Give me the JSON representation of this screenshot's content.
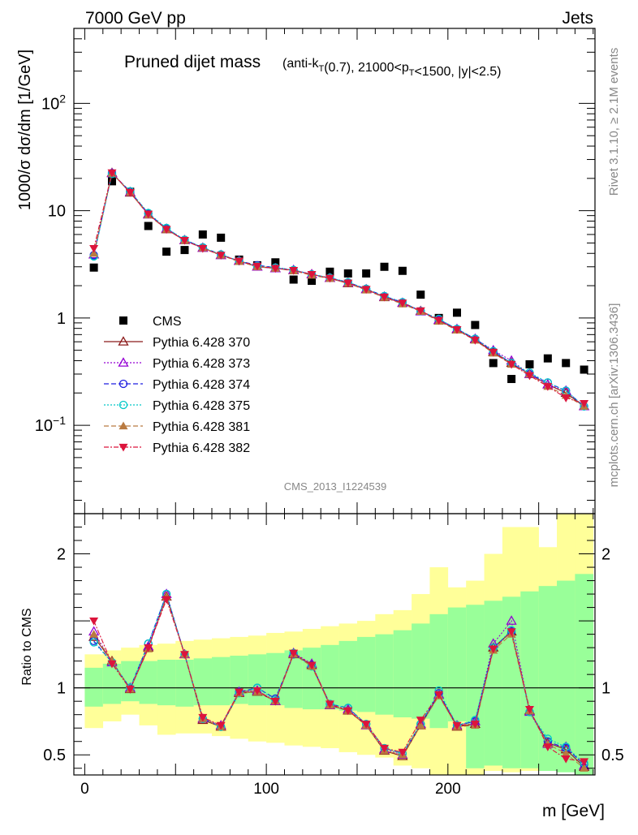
{
  "header": {
    "energy": "7000 GeV pp",
    "category": "Jets",
    "rivet": "Rivet 3.1.10, ≥ 2.1M events",
    "source": "mcplots.cern.ch [arXiv:1306.3436]",
    "analysis": "CMS_2013_I1224539"
  },
  "chart_data": [
    {
      "type": "scatter",
      "panel": "main",
      "title": "Pruned dijet mass",
      "subtitle": "(anti-k_T(0.7), 21000<p_T<1500, |y|<2.5)",
      "ylabel": "1000/σ dσ/dm [1/GeV]",
      "xlabel": "m [GeV]",
      "yscale": "log",
      "xlim": [
        -6,
        281
      ],
      "ylim": [
        0.015,
        500
      ],
      "x_ticks": [
        "0",
        "100",
        "200"
      ],
      "y_ticks": [
        "10^-1",
        "1",
        "10",
        "10^2"
      ],
      "legend_position": "middle-left",
      "x": [
        5,
        15,
        25,
        35,
        45,
        55,
        65,
        75,
        85,
        95,
        105,
        115,
        125,
        135,
        145,
        155,
        165,
        175,
        185,
        195,
        205,
        215,
        225,
        235,
        245,
        255,
        265,
        275
      ],
      "series": [
        {
          "name": "CMS",
          "color": "#000000",
          "marker": "square",
          "values": [
            2.95,
            18.8,
            15.0,
            7.2,
            4.15,
            4.3,
            6.0,
            5.6,
            3.5,
            3.1,
            3.3,
            2.28,
            2.22,
            2.7,
            2.6,
            2.6,
            3.0,
            2.75,
            1.65,
            1.0,
            1.12,
            0.86,
            0.38,
            0.27,
            0.37,
            0.42,
            0.38,
            0.33
          ]
        },
        {
          "name": "Pythia 6.428 370",
          "color": "#8b1a1a",
          "marker": "triangle-open",
          "dash": "",
          "values": [
            3.9,
            22.5,
            14.7,
            9.3,
            6.7,
            5.3,
            4.5,
            3.85,
            3.4,
            3.0,
            2.9,
            2.78,
            2.55,
            2.35,
            2.1,
            1.85,
            1.56,
            1.38,
            1.16,
            0.95,
            0.78,
            0.63,
            0.48,
            0.38,
            0.3,
            0.24,
            0.2,
            0.15
          ]
        },
        {
          "name": "Pythia 6.428 373",
          "color": "#9400d3",
          "marker": "triangle-open",
          "dash": "2,2",
          "values": [
            3.9,
            22.3,
            14.9,
            9.2,
            6.8,
            5.3,
            4.5,
            3.85,
            3.4,
            3.0,
            2.9,
            2.8,
            2.55,
            2.35,
            2.12,
            1.85,
            1.58,
            1.38,
            1.15,
            0.96,
            0.79,
            0.64,
            0.5,
            0.4,
            0.3,
            0.24,
            0.21,
            0.15
          ]
        },
        {
          "name": "Pythia 6.428 374",
          "color": "#1f1fe0",
          "marker": "circle-open",
          "dash": "6,3",
          "values": [
            3.85,
            22.4,
            15.1,
            9.4,
            6.8,
            5.35,
            4.55,
            3.9,
            3.4,
            3.1,
            2.95,
            2.8,
            2.55,
            2.37,
            2.15,
            1.87,
            1.6,
            1.4,
            1.16,
            0.97,
            0.79,
            0.64,
            0.49,
            0.38,
            0.3,
            0.25,
            0.21,
            0.15
          ]
        },
        {
          "name": "Pythia 6.428 375",
          "color": "#00c8c8",
          "marker": "circle-open",
          "dash": "2,2",
          "values": [
            3.75,
            22.0,
            15.2,
            9.5,
            6.9,
            5.35,
            4.55,
            3.9,
            3.4,
            3.05,
            2.95,
            2.8,
            2.55,
            2.37,
            2.15,
            1.87,
            1.6,
            1.4,
            1.16,
            0.98,
            0.79,
            0.64,
            0.49,
            0.38,
            0.31,
            0.25,
            0.21,
            0.15
          ]
        },
        {
          "name": "Pythia 6.428 381",
          "color": "#b97a40",
          "marker": "triangle-filled",
          "dash": "6,3",
          "values": [
            4.0,
            22.3,
            14.8,
            9.1,
            6.7,
            5.25,
            4.5,
            3.85,
            3.35,
            3.0,
            2.9,
            2.75,
            2.5,
            2.33,
            2.1,
            1.82,
            1.55,
            1.35,
            1.15,
            0.93,
            0.77,
            0.62,
            0.47,
            0.37,
            0.3,
            0.23,
            0.19,
            0.15
          ]
        },
        {
          "name": "Pythia 6.428 382",
          "color": "#dc143c",
          "marker": "triangle-down-filled",
          "dash": "6,2,2,2",
          "values": [
            4.45,
            22.6,
            14.8,
            9.3,
            6.7,
            5.3,
            4.45,
            3.85,
            3.4,
            3.05,
            2.9,
            2.78,
            2.55,
            2.35,
            2.12,
            1.85,
            1.57,
            1.38,
            1.17,
            0.95,
            0.78,
            0.62,
            0.48,
            0.37,
            0.29,
            0.23,
            0.18,
            0.16
          ]
        }
      ]
    },
    {
      "type": "line",
      "panel": "ratio",
      "ylabel": "Ratio to CMS",
      "xlabel": "m [GeV]",
      "xlim": [
        -6,
        281
      ],
      "ylim": [
        0.35,
        2.3
      ],
      "y_ticks": [
        "0.5",
        "1",
        "2"
      ],
      "reference_line": 1,
      "bands": {
        "bin_edges": [
          0,
          10,
          20,
          30,
          40,
          50,
          60,
          70,
          80,
          90,
          100,
          110,
          120,
          130,
          140,
          150,
          160,
          170,
          180,
          190,
          200,
          210,
          220,
          230,
          240,
          250,
          260,
          270,
          280
        ],
        "inner_color": "#99ff99",
        "outer_color": "#ffff99",
        "inner_low": [
          0.86,
          0.88,
          0.9,
          0.88,
          0.87,
          0.86,
          0.87,
          0.87,
          0.88,
          0.87,
          0.87,
          0.85,
          0.84,
          0.84,
          0.83,
          0.82,
          0.8,
          0.78,
          0.77,
          0.7,
          0.75,
          0.4,
          0.42,
          0.4,
          0.4,
          0.38,
          0.37,
          0.35
        ],
        "inner_high": [
          1.15,
          1.18,
          1.2,
          1.2,
          1.21,
          1.21,
          1.22,
          1.23,
          1.24,
          1.25,
          1.26,
          1.28,
          1.3,
          1.32,
          1.35,
          1.38,
          1.4,
          1.43,
          1.48,
          1.55,
          1.6,
          1.62,
          1.65,
          1.68,
          1.72,
          1.76,
          1.8,
          1.85
        ],
        "outer_low": [
          0.7,
          0.75,
          0.8,
          0.72,
          0.65,
          0.66,
          0.66,
          0.64,
          0.62,
          0.6,
          0.59,
          0.57,
          0.56,
          0.55,
          0.52,
          0.5,
          0.48,
          0.42,
          0.4,
          0.35,
          0.35,
          0.35,
          0.38,
          0.37,
          0.38,
          0.45,
          0.42,
          0.35
        ],
        "outer_high": [
          1.25,
          1.28,
          1.3,
          1.32,
          1.33,
          1.35,
          1.36,
          1.37,
          1.38,
          1.39,
          1.41,
          1.42,
          1.44,
          1.46,
          1.48,
          1.5,
          1.55,
          1.58,
          1.7,
          1.9,
          1.75,
          1.8,
          2.0,
          2.2,
          2.2,
          2.05,
          2.3,
          2.3
        ]
      },
      "x": [
        5,
        15,
        25,
        35,
        45,
        55,
        65,
        75,
        85,
        95,
        105,
        115,
        125,
        135,
        145,
        155,
        165,
        175,
        185,
        195,
        205,
        215,
        225,
        235,
        245,
        255,
        265,
        275
      ],
      "series": [
        {
          "name": "Pythia 6.428 370",
          "color": "#8b1a1a",
          "marker": "triangle-open",
          "dash": "",
          "values": [
            1.38,
            1.2,
            0.99,
            1.3,
            1.68,
            1.25,
            0.76,
            0.71,
            0.96,
            0.97,
            0.9,
            1.25,
            1.17,
            0.87,
            0.83,
            0.72,
            0.53,
            0.49,
            0.72,
            0.95,
            0.71,
            0.73,
            1.3,
            1.42,
            0.83,
            0.59,
            0.54,
            0.41
          ]
        },
        {
          "name": "Pythia 6.428 373",
          "color": "#9400d3",
          "marker": "triangle-open",
          "dash": "2,2",
          "values": [
            1.42,
            1.19,
            1.0,
            1.31,
            1.7,
            1.25,
            0.77,
            0.72,
            0.97,
            0.98,
            0.9,
            1.26,
            1.18,
            0.87,
            0.84,
            0.72,
            0.54,
            0.5,
            0.73,
            0.95,
            0.72,
            0.75,
            1.33,
            1.5,
            0.82,
            0.58,
            0.56,
            0.42
          ]
        },
        {
          "name": "Pythia 6.428 374",
          "color": "#1f1fe0",
          "marker": "circle-open",
          "dash": "6,3",
          "values": [
            1.35,
            1.19,
            1.0,
            1.33,
            1.7,
            1.25,
            0.77,
            0.71,
            0.97,
            1.0,
            0.92,
            1.25,
            1.17,
            0.88,
            0.85,
            0.73,
            0.55,
            0.51,
            0.73,
            0.96,
            0.72,
            0.75,
            1.3,
            1.42,
            0.82,
            0.6,
            0.55,
            0.43
          ]
        },
        {
          "name": "Pythia 6.428 375",
          "color": "#00c8c8",
          "marker": "circle-open",
          "dash": "2,2",
          "values": [
            1.34,
            1.19,
            1.0,
            1.33,
            1.7,
            1.25,
            0.77,
            0.71,
            0.96,
            1.0,
            0.91,
            1.26,
            1.16,
            0.88,
            0.85,
            0.73,
            0.55,
            0.51,
            0.73,
            0.98,
            0.72,
            0.76,
            1.3,
            1.43,
            0.82,
            0.62,
            0.56,
            0.44
          ]
        },
        {
          "name": "Pythia 6.428 381",
          "color": "#b97a40",
          "marker": "triangle-filled",
          "dash": "6,3",
          "values": [
            1.4,
            1.2,
            0.99,
            1.29,
            1.68,
            1.25,
            0.77,
            0.71,
            0.96,
            0.97,
            0.9,
            1.25,
            1.16,
            0.87,
            0.83,
            0.72,
            0.53,
            0.5,
            0.72,
            0.94,
            0.71,
            0.72,
            1.28,
            1.4,
            0.83,
            0.58,
            0.51,
            0.4
          ]
        },
        {
          "name": "Pythia 6.428 382",
          "color": "#dc143c",
          "marker": "triangle-down-filled",
          "dash": "6,2,2,2",
          "values": [
            1.5,
            1.18,
            0.99,
            1.3,
            1.66,
            1.25,
            0.78,
            0.72,
            0.97,
            0.98,
            0.9,
            1.26,
            1.17,
            0.88,
            0.83,
            0.73,
            0.55,
            0.52,
            0.76,
            0.95,
            0.72,
            0.73,
            1.29,
            1.42,
            0.84,
            0.56,
            0.47,
            0.45
          ]
        }
      ]
    }
  ]
}
